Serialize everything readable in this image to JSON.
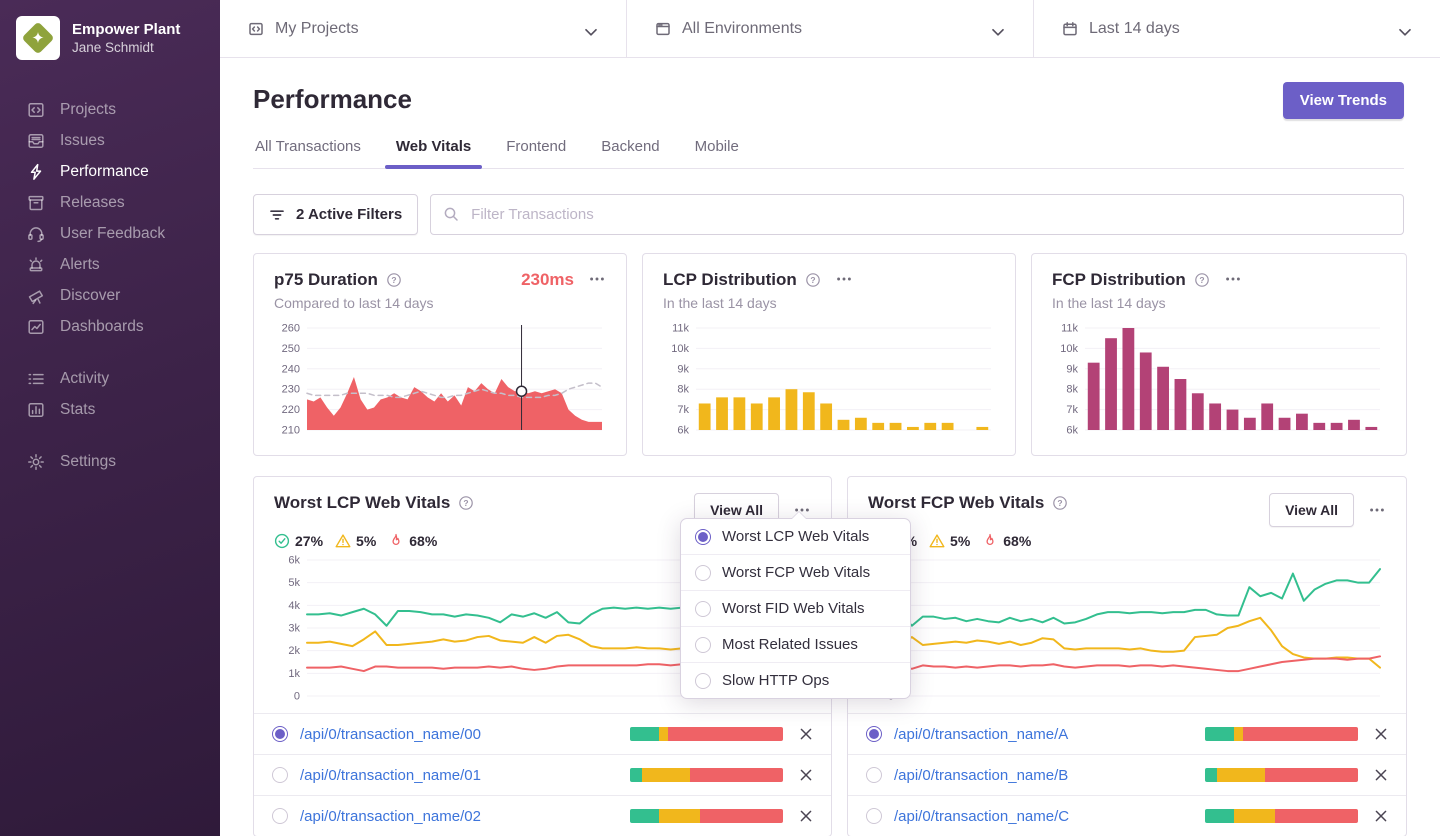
{
  "colors": {
    "accent": "#6c5fc7",
    "good": "#33bf8f",
    "meh": "#f1b71c",
    "poor": "#ef6266",
    "fcp_bar": "#b34276",
    "link": "#3d74db"
  },
  "sidebar": {
    "org_name": "Empower Plant",
    "user_name": "Jane Schmidt",
    "items": [
      {
        "label": "Projects",
        "active": false
      },
      {
        "label": "Issues",
        "active": false
      },
      {
        "label": "Performance",
        "active": true
      },
      {
        "label": "Releases",
        "active": false
      },
      {
        "label": "User Feedback",
        "active": false
      },
      {
        "label": "Alerts",
        "active": false
      },
      {
        "label": "Discover",
        "active": false
      },
      {
        "label": "Dashboards",
        "active": false
      }
    ],
    "secondary_items": [
      {
        "label": "Activity",
        "active": false
      },
      {
        "label": "Stats",
        "active": false
      }
    ],
    "settings_label": "Settings"
  },
  "topbar": {
    "project_filter": {
      "label": "My Projects"
    },
    "environment_filter": {
      "label": "All Environments"
    },
    "date_filter": {
      "label": "Last 14 days"
    }
  },
  "header": {
    "title": "Performance",
    "view_trends_label": "View Trends",
    "tabs": [
      {
        "label": "All Transactions",
        "active": false
      },
      {
        "label": "Web Vitals",
        "active": true
      },
      {
        "label": "Frontend",
        "active": false
      },
      {
        "label": "Backend",
        "active": false
      },
      {
        "label": "Mobile",
        "active": false
      }
    ]
  },
  "filter_bar": {
    "active_filters_label": "2 Active Filters",
    "search_placeholder": "Filter Transactions"
  },
  "dropdown": {
    "options": [
      {
        "label": "Worst LCP Web Vitals",
        "selected": true
      },
      {
        "label": "Worst FCP Web Vitals",
        "selected": false
      },
      {
        "label": "Worst FID Web Vitals",
        "selected": false
      },
      {
        "label": "Most Related Issues",
        "selected": false
      },
      {
        "label": "Slow HTTP Ops",
        "selected": false
      }
    ]
  },
  "vitals_cards": [
    {
      "title": "Worst LCP Web Vitals",
      "good_pct": "27%",
      "meh_pct": "5%",
      "poor_pct": "68%",
      "view_all_label": "View All",
      "transactions": [
        {
          "name": "/api/0/transaction_name/00",
          "selected": true,
          "segments": [
            19,
            6,
            75
          ]
        },
        {
          "name": "/api/0/transaction_name/01",
          "selected": false,
          "segments": [
            8,
            31,
            61
          ]
        },
        {
          "name": "/api/0/transaction_name/02",
          "selected": false,
          "segments": [
            19,
            27,
            54
          ]
        }
      ]
    },
    {
      "title": "Worst FCP Web Vitals",
      "good_pct": "27%",
      "meh_pct": "5%",
      "poor_pct": "68%",
      "view_all_label": "View All",
      "transactions": [
        {
          "name": "/api/0/transaction_name/A",
          "selected": true,
          "segments": [
            19,
            6,
            75
          ]
        },
        {
          "name": "/api/0/transaction_name/B",
          "selected": false,
          "segments": [
            8,
            31,
            61
          ]
        },
        {
          "name": "/api/0/transaction_name/C",
          "selected": false,
          "segments": [
            19,
            27,
            54
          ]
        }
      ]
    }
  ],
  "chart_data": [
    {
      "id": "p75-duration",
      "type": "area",
      "title": "p75 Duration",
      "subtitle": "Compared to last 14 days",
      "current_value": "230ms",
      "ylim": [
        210,
        260
      ],
      "yticks": [
        {
          "label": "260",
          "v": 260
        },
        {
          "label": "250",
          "v": 250
        },
        {
          "label": "240",
          "v": 240
        },
        {
          "label": "230",
          "v": 230
        },
        {
          "label": "220",
          "v": 220
        },
        {
          "label": "210",
          "v": 210
        }
      ],
      "series": [
        {
          "name": "p75 current period",
          "type": "area",
          "color": "#ef6266",
          "values": [
            225,
            224,
            226,
            221,
            217,
            221,
            228,
            236,
            225,
            220,
            221,
            225,
            226,
            228,
            226,
            225,
            231,
            229,
            226,
            224,
            228,
            224,
            227,
            222,
            231,
            229,
            233,
            230,
            228,
            235,
            231,
            229,
            229,
            228,
            229,
            228,
            229,
            230,
            228,
            220,
            217,
            215,
            214,
            214,
            214
          ]
        },
        {
          "name": "p75 previous period",
          "type": "dashed-line",
          "color": "#c4bfca",
          "values": [
            228,
            227,
            227,
            227,
            227,
            227,
            228,
            228,
            228,
            228,
            227,
            227,
            227,
            226,
            226,
            227,
            228,
            229,
            228,
            227,
            226,
            226,
            227,
            227,
            228,
            229,
            230,
            229,
            228,
            228,
            227,
            227,
            226,
            226,
            226,
            226,
            227,
            227,
            228,
            230,
            231,
            232,
            233,
            233,
            231
          ]
        }
      ],
      "marker": {
        "index": 32,
        "value": 229
      }
    },
    {
      "id": "lcp-distribution",
      "type": "bar",
      "title": "LCP Distribution",
      "subtitle": "In the last 14 days",
      "color": "#f1b71c",
      "ylim": [
        6000,
        11000
      ],
      "yticks": [
        {
          "label": "11k",
          "v": 11000
        },
        {
          "label": "10k",
          "v": 10000
        },
        {
          "label": "9k",
          "v": 9000
        },
        {
          "label": "8k",
          "v": 8000
        },
        {
          "label": "7k",
          "v": 7000
        },
        {
          "label": "6k",
          "v": 6000
        }
      ],
      "values": [
        7300,
        7600,
        7600,
        7300,
        7600,
        8000,
        7850,
        7300,
        6500,
        6600,
        6350,
        6350,
        6150,
        6350,
        6350,
        null,
        6150
      ]
    },
    {
      "id": "fcp-distribution",
      "type": "bar",
      "title": "FCP Distribution",
      "subtitle": "In the last 14 days",
      "color": "#b34276",
      "ylim": [
        6000,
        11000
      ],
      "yticks": [
        {
          "label": "11k",
          "v": 11000
        },
        {
          "label": "10k",
          "v": 10000
        },
        {
          "label": "9k",
          "v": 9000
        },
        {
          "label": "8k",
          "v": 8000
        },
        {
          "label": "7k",
          "v": 7000
        },
        {
          "label": "6k",
          "v": 6000
        }
      ],
      "values": [
        9300,
        10500,
        11000,
        9800,
        9100,
        8500,
        7800,
        7300,
        7000,
        6600,
        7300,
        6600,
        6800,
        6350,
        6350,
        6500,
        6150
      ]
    },
    {
      "id": "worst-lcp-web-vitals",
      "type": "line",
      "ylim": [
        0,
        6000
      ],
      "yticks": [
        {
          "label": "6k",
          "v": 6000
        },
        {
          "label": "5k",
          "v": 5000
        },
        {
          "label": "4k",
          "v": 4000
        },
        {
          "label": "3k",
          "v": 3000
        },
        {
          "label": "2k",
          "v": 2000
        },
        {
          "label": "1k",
          "v": 1000
        },
        {
          "label": "0",
          "v": 0
        }
      ],
      "series": [
        {
          "name": "good",
          "color": "#33bf8f",
          "values": [
            3600,
            3600,
            3650,
            3550,
            3700,
            3850,
            3600,
            3100,
            3750,
            3750,
            3700,
            3600,
            3600,
            3500,
            3600,
            3550,
            3450,
            3250,
            3600,
            3500,
            3650,
            3450,
            3700,
            3250,
            3200,
            3600,
            3850,
            3900,
            3850,
            3900,
            3850,
            3900,
            3850,
            3900,
            3900,
            3850,
            3900,
            3900,
            4050,
            4050,
            3500,
            3450,
            3400,
            5200,
            4600
          ]
        },
        {
          "name": "meh",
          "color": "#f1b71c",
          "values": [
            2350,
            2350,
            2400,
            2300,
            2200,
            2500,
            2850,
            2250,
            2250,
            2300,
            2350,
            2400,
            2500,
            2400,
            2450,
            2600,
            2650,
            2450,
            2400,
            2350,
            2600,
            2350,
            2650,
            2700,
            2500,
            2200,
            2100,
            2100,
            2100,
            2150,
            2100,
            2100,
            2050,
            2100,
            2100,
            2050,
            2100,
            2050,
            1950,
            2000,
            2450,
            2500,
            2950,
            3200,
            3450
          ]
        },
        {
          "name": "poor",
          "color": "#ef6266",
          "values": [
            1250,
            1250,
            1250,
            1300,
            1200,
            1100,
            1300,
            1300,
            1250,
            1250,
            1250,
            1250,
            1200,
            1250,
            1250,
            1250,
            1300,
            1250,
            1300,
            1200,
            1150,
            1200,
            1300,
            1350,
            1350,
            1350,
            1350,
            1350,
            1350,
            1350,
            1400,
            1400,
            1350,
            1400,
            1450,
            1350,
            1300,
            1250,
            1250,
            1150,
            1100,
            1050,
            1000,
            950,
            950
          ]
        }
      ]
    },
    {
      "id": "worst-fcp-web-vitals",
      "type": "line",
      "ylim": [
        0,
        6000
      ],
      "yticks": [
        {
          "label": "6k",
          "v": 6000
        },
        {
          "label": "5k",
          "v": 5000
        },
        {
          "label": "4k",
          "v": 4000
        },
        {
          "label": "3k",
          "v": 3000
        },
        {
          "label": "2k",
          "v": 2000
        },
        {
          "label": "1k",
          "v": 1000
        },
        {
          "label": "0",
          "v": 0
        }
      ],
      "series": [
        {
          "name": "good",
          "color": "#33bf8f",
          "values": [
            3600,
            3100,
            3500,
            3500,
            3400,
            3450,
            3300,
            3400,
            3300,
            3250,
            3450,
            3300,
            3400,
            3250,
            3450,
            3200,
            3250,
            3400,
            3600,
            3700,
            3700,
            3650,
            3700,
            3700,
            3650,
            3700,
            3700,
            3800,
            3800,
            3600,
            3550,
            3550,
            4800,
            4400,
            4550,
            4300,
            5400,
            4200,
            4700,
            4950,
            5100,
            5100,
            5000,
            5000,
            5600
          ]
        },
        {
          "name": "meh",
          "color": "#f1b71c",
          "values": [
            2300,
            2600,
            2250,
            2300,
            2350,
            2400,
            2350,
            2450,
            2400,
            2300,
            2400,
            2250,
            2350,
            2550,
            2500,
            2100,
            2050,
            2100,
            2100,
            2100,
            2100,
            2050,
            2100,
            2000,
            1950,
            1950,
            2000,
            2600,
            2650,
            2700,
            3000,
            3100,
            3300,
            3450,
            2900,
            2200,
            1850,
            1700,
            1650,
            1650,
            1700,
            1700,
            1650,
            1650,
            1250
          ]
        },
        {
          "name": "poor",
          "color": "#ef6266",
          "values": [
            1300,
            1200,
            1350,
            1300,
            1300,
            1250,
            1300,
            1250,
            1300,
            1350,
            1350,
            1300,
            1350,
            1350,
            1400,
            1300,
            1250,
            1300,
            1350,
            1350,
            1350,
            1300,
            1350,
            1350,
            1300,
            1350,
            1300,
            1250,
            1200,
            1150,
            1100,
            1100,
            1200,
            1300,
            1400,
            1500,
            1550,
            1600,
            1650,
            1650,
            1650,
            1600,
            1650,
            1650,
            1750
          ]
        }
      ]
    }
  ]
}
